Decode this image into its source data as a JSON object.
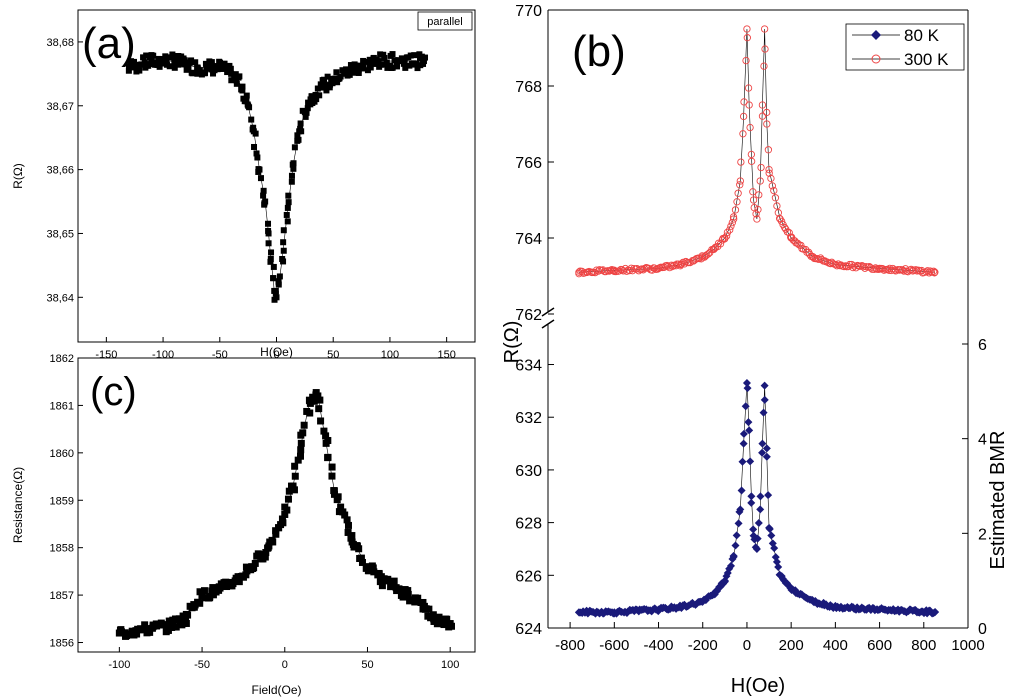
{
  "chart_data": [
    {
      "type": "scatter",
      "panel_label": "(a)",
      "legend": [
        "parallel"
      ],
      "xlabel": "H(Oe)",
      "ylabel": "R(Ω)",
      "xlim": [
        -175,
        175
      ],
      "ylim": [
        38.633,
        38.685
      ],
      "xticks": [
        -150,
        -100,
        -50,
        0,
        50,
        100,
        150
      ],
      "yticks": [
        38.64,
        38.65,
        38.66,
        38.67,
        38.68
      ],
      "yticklabels": [
        "38,64",
        "38,65",
        "38,66",
        "38,67",
        "38,68"
      ],
      "marker_color": "#000000",
      "series": [
        {
          "x": [
            -130,
            -110,
            -90,
            -70,
            -50,
            -40,
            -30,
            -25,
            -20,
            -15,
            -10,
            -7,
            -5,
            -3,
            -2,
            0,
            2,
            5,
            10,
            15,
            20,
            25,
            30,
            40,
            50,
            70,
            90,
            110,
            130
          ],
          "y": [
            38.676,
            38.677,
            38.677,
            38.676,
            38.676,
            38.675,
            38.673,
            38.67,
            38.666,
            38.66,
            38.655,
            38.65,
            38.646,
            38.643,
            38.641,
            38.64,
            38.642,
            38.646,
            38.654,
            38.661,
            38.666,
            38.669,
            38.671,
            38.673,
            38.674,
            38.676,
            38.677,
            38.677,
            38.677
          ]
        }
      ]
    },
    {
      "type": "scatter",
      "panel_label": "(b)",
      "xlabel": "H(Oe)",
      "ylabel": "R(Ω)",
      "y2label": "Estimated BMR",
      "xlim": [
        -900,
        1000
      ],
      "xticks": [
        -800,
        -600,
        -400,
        -200,
        0,
        200,
        400,
        600,
        800,
        1000
      ],
      "upper_ylim": [
        762,
        770
      ],
      "upper_yticks": [
        762,
        764,
        766,
        768,
        770
      ],
      "lower_ylim": [
        624,
        635.5
      ],
      "lower_yticks": [
        624,
        626,
        628,
        630,
        632,
        634
      ],
      "y2ticks": [
        0,
        2,
        4,
        6
      ],
      "legend_position": "top-right",
      "series": [
        {
          "name": "80 K",
          "marker": "diamond",
          "color": "#1a1a7a",
          "x": [
            -760,
            -600,
            -400,
            -300,
            -200,
            -150,
            -100,
            -60,
            -30,
            -15,
            0,
            10,
            20,
            30,
            45,
            60,
            70,
            80,
            90,
            100,
            150,
            200,
            300,
            400,
            600,
            850
          ],
          "y": [
            624.6,
            624.6,
            624.7,
            624.8,
            625.0,
            625.3,
            625.8,
            626.7,
            628.5,
            631.0,
            633.3,
            631.5,
            629.0,
            627.5,
            627.0,
            628.5,
            631.0,
            633.2,
            630.5,
            627.8,
            626.0,
            625.5,
            625.0,
            624.8,
            624.7,
            624.6
          ]
        },
        {
          "name": "300 K",
          "marker": "circle",
          "color": "#ee4444",
          "x": [
            -760,
            -600,
            -400,
            -300,
            -200,
            -150,
            -100,
            -60,
            -30,
            -15,
            0,
            10,
            20,
            30,
            45,
            60,
            70,
            80,
            90,
            100,
            150,
            200,
            300,
            400,
            600,
            850
          ],
          "y": [
            763.1,
            763.15,
            763.2,
            763.3,
            763.5,
            763.7,
            764.0,
            764.5,
            765.5,
            767.2,
            769.5,
            767.5,
            766.2,
            765.0,
            764.5,
            765.5,
            767.5,
            769.5,
            767.0,
            765.8,
            764.5,
            764.0,
            763.5,
            763.3,
            763.2,
            763.1
          ]
        }
      ]
    },
    {
      "type": "scatter",
      "panel_label": "(c)",
      "xlabel": "Field(Oe)",
      "ylabel": "Resistance(Ω)",
      "xlim": [
        -125,
        115
      ],
      "ylim": [
        1855.8,
        1862
      ],
      "xticks": [
        -100,
        -50,
        0,
        50,
        100
      ],
      "yticks": [
        1856,
        1857,
        1858,
        1859,
        1860,
        1861,
        1862
      ],
      "marker_color": "#000000",
      "series": [
        {
          "x": [
            -100,
            -90,
            -80,
            -70,
            -60,
            -55,
            -50,
            -40,
            -30,
            -20,
            -10,
            0,
            5,
            10,
            15,
            20,
            25,
            30,
            40,
            50,
            60,
            70,
            80,
            85,
            90,
            100
          ],
          "y": [
            1856.2,
            1856.25,
            1856.3,
            1856.35,
            1856.5,
            1856.8,
            1857.0,
            1857.1,
            1857.3,
            1857.6,
            1858.0,
            1858.7,
            1859.3,
            1860.2,
            1861.1,
            1861.2,
            1860.2,
            1859.2,
            1858.2,
            1857.6,
            1857.3,
            1857.1,
            1856.9,
            1856.7,
            1856.5,
            1856.4
          ]
        }
      ]
    }
  ]
}
